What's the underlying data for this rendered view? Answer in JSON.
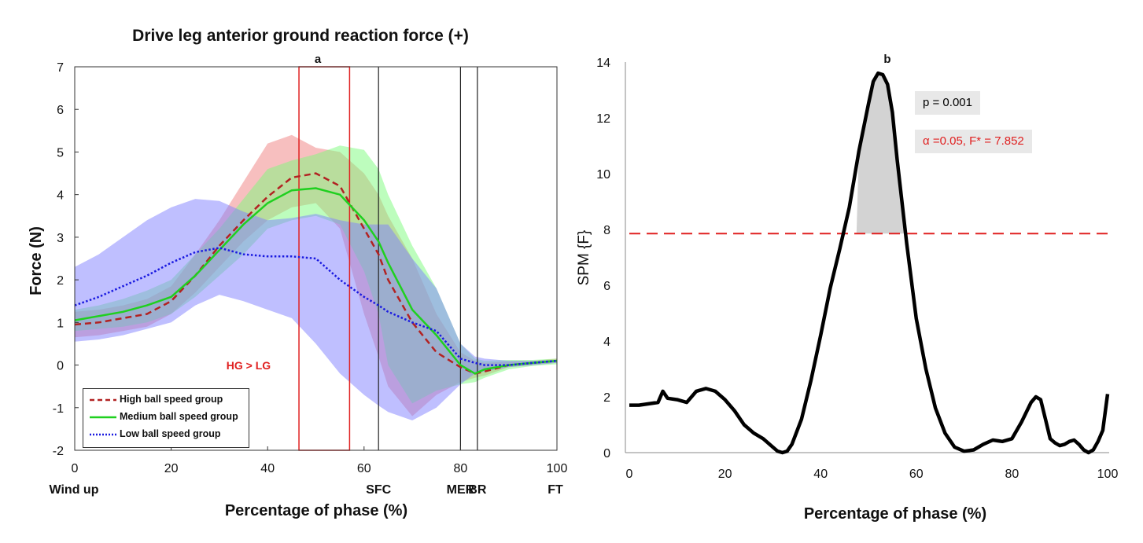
{
  "figure": {
    "title": "Drive leg anterior ground reaction force (+)"
  },
  "colors": {
    "high": "#b22222",
    "high_band": "#f08080",
    "medium": "#1fd01f",
    "medium_band": "#7cfc7c",
    "low": "#1a1ae0",
    "low_band": "#8080ff",
    "highlight_box": "#e02020",
    "threshold": "#e02020",
    "spm_line": "#000000",
    "cluster_fill": "#d3d3d3",
    "annotation": "#e02020"
  },
  "chart_data": [
    {
      "panel_label": "a",
      "type": "line",
      "xlabel": "Percentage of phase (%)",
      "ylabel": "Force (N)",
      "xlim": [
        0,
        100
      ],
      "ylim": [
        -2,
        7
      ],
      "xticks": [
        0,
        20,
        40,
        60,
        80,
        100
      ],
      "yticks": [
        -2,
        -1,
        0,
        1,
        2,
        3,
        4,
        5,
        6,
        7
      ],
      "phase_events": [
        {
          "label": "Wind up",
          "x": 0
        },
        {
          "label": "SFC",
          "x": 63
        },
        {
          "label": "MER",
          "x": 80
        },
        {
          "label": "BR",
          "x": 83.5
        },
        {
          "label": "FT",
          "x": 100
        }
      ],
      "highlight_region": {
        "x_start": 46.5,
        "x_end": 57,
        "label": "HG > LG"
      },
      "legend": [
        "High ball speed group",
        "Medium ball speed group",
        "Low ball speed group"
      ],
      "legend_position": "bottom-left",
      "x": [
        0,
        5,
        10,
        15,
        20,
        25,
        30,
        35,
        40,
        45,
        50,
        55,
        60,
        63,
        65,
        70,
        75,
        80,
        83,
        85,
        90,
        95,
        100
      ],
      "series": [
        {
          "name": "High ball speed group",
          "values": [
            0.95,
            1.0,
            1.1,
            1.2,
            1.5,
            2.1,
            2.8,
            3.4,
            3.95,
            4.4,
            4.5,
            4.2,
            3.2,
            2.6,
            2.0,
            1.0,
            0.3,
            -0.05,
            -0.2,
            -0.15,
            0.0,
            0.05,
            0.1
          ],
          "lower": [
            0.65,
            0.7,
            0.8,
            0.9,
            1.2,
            1.7,
            2.3,
            2.9,
            3.4,
            3.7,
            3.8,
            3.2,
            1.2,
            0.2,
            -0.5,
            -1.2,
            -0.7,
            -0.4,
            -0.3,
            -0.25,
            -0.05,
            0.0,
            0.05
          ],
          "upper": [
            1.25,
            1.3,
            1.4,
            1.55,
            1.85,
            2.6,
            3.4,
            4.3,
            5.2,
            5.4,
            5.1,
            5.0,
            4.5,
            4.0,
            3.5,
            2.5,
            1.2,
            0.3,
            0.1,
            0.05,
            0.08,
            0.1,
            0.15
          ]
        },
        {
          "name": "Medium ball speed group",
          "values": [
            1.05,
            1.15,
            1.25,
            1.4,
            1.6,
            2.1,
            2.7,
            3.3,
            3.8,
            4.1,
            4.15,
            4.0,
            3.4,
            2.9,
            2.4,
            1.3,
            0.7,
            0.0,
            -0.2,
            -0.1,
            0.0,
            0.05,
            0.1
          ],
          "lower": [
            0.8,
            0.85,
            0.9,
            1.0,
            1.2,
            1.6,
            2.1,
            2.6,
            3.2,
            3.4,
            3.5,
            3.3,
            2.2,
            1.2,
            0.0,
            -0.9,
            -0.6,
            -0.45,
            -0.4,
            -0.3,
            -0.1,
            -0.02,
            0.02
          ],
          "upper": [
            1.3,
            1.4,
            1.55,
            1.75,
            2.0,
            2.6,
            3.2,
            3.9,
            4.6,
            4.8,
            4.95,
            5.15,
            5.05,
            4.6,
            4.0,
            2.8,
            1.8,
            0.5,
            0.15,
            0.1,
            0.12,
            0.12,
            0.15
          ]
        },
        {
          "name": "Low ball speed group",
          "values": [
            1.4,
            1.6,
            1.85,
            2.1,
            2.4,
            2.65,
            2.75,
            2.6,
            2.55,
            2.55,
            2.5,
            2.0,
            1.6,
            1.4,
            1.25,
            1.0,
            0.8,
            0.15,
            0.05,
            0.0,
            0.0,
            0.05,
            0.1
          ],
          "lower": [
            0.55,
            0.6,
            0.7,
            0.85,
            1.0,
            1.4,
            1.65,
            1.5,
            1.3,
            1.1,
            0.5,
            -0.2,
            -0.7,
            -0.95,
            -1.1,
            -1.3,
            -1.0,
            -0.45,
            -0.2,
            -0.15,
            -0.05,
            0.0,
            0.05
          ],
          "upper": [
            2.3,
            2.6,
            3.0,
            3.4,
            3.7,
            3.9,
            3.85,
            3.6,
            3.4,
            3.45,
            3.55,
            3.4,
            3.3,
            3.3,
            3.3,
            2.5,
            1.8,
            0.5,
            0.2,
            0.15,
            0.1,
            0.1,
            0.12
          ]
        }
      ]
    },
    {
      "panel_label": "b",
      "type": "line",
      "xlabel": "Percentage of phase (%)",
      "ylabel": "SPM {F}",
      "xlim": [
        0,
        100
      ],
      "ylim": [
        0,
        14
      ],
      "xticks": [
        0,
        20,
        40,
        60,
        80,
        100
      ],
      "yticks": [
        0,
        2,
        4,
        6,
        8,
        10,
        12,
        14
      ],
      "threshold": 7.852,
      "p_value_text": "p = 0.001",
      "alpha_text": "α  =0.05,     F* = 7.852",
      "suprathreshold_cluster": {
        "x_start": 47.5,
        "x_end": 57.5
      },
      "x": [
        0,
        2,
        4,
        6,
        7,
        8,
        10,
        12,
        14,
        16,
        18,
        20,
        22,
        24,
        26,
        28,
        30,
        31,
        32,
        33,
        34,
        36,
        38,
        40,
        42,
        44,
        46,
        48,
        50,
        51,
        52,
        53,
        54,
        55,
        56,
        58,
        60,
        62,
        64,
        66,
        68,
        70,
        72,
        74,
        76,
        78,
        80,
        82,
        84,
        85,
        86,
        87,
        88,
        89,
        90,
        91,
        92,
        93,
        94,
        95,
        96,
        97,
        98,
        99,
        100
      ],
      "values": [
        1.7,
        1.7,
        1.75,
        1.8,
        2.2,
        1.95,
        1.9,
        1.8,
        2.2,
        2.3,
        2.2,
        1.9,
        1.5,
        1.0,
        0.7,
        0.5,
        0.2,
        0.05,
        0.0,
        0.05,
        0.3,
        1.2,
        2.6,
        4.2,
        5.9,
        7.3,
        8.8,
        10.8,
        12.5,
        13.3,
        13.6,
        13.55,
        13.2,
        12.2,
        10.5,
        7.5,
        4.8,
        3.0,
        1.6,
        0.7,
        0.2,
        0.05,
        0.1,
        0.3,
        0.45,
        0.4,
        0.5,
        1.1,
        1.8,
        2.0,
        1.9,
        1.2,
        0.5,
        0.35,
        0.25,
        0.3,
        0.4,
        0.45,
        0.3,
        0.1,
        0.0,
        0.1,
        0.4,
        0.8,
        2.1
      ]
    }
  ]
}
